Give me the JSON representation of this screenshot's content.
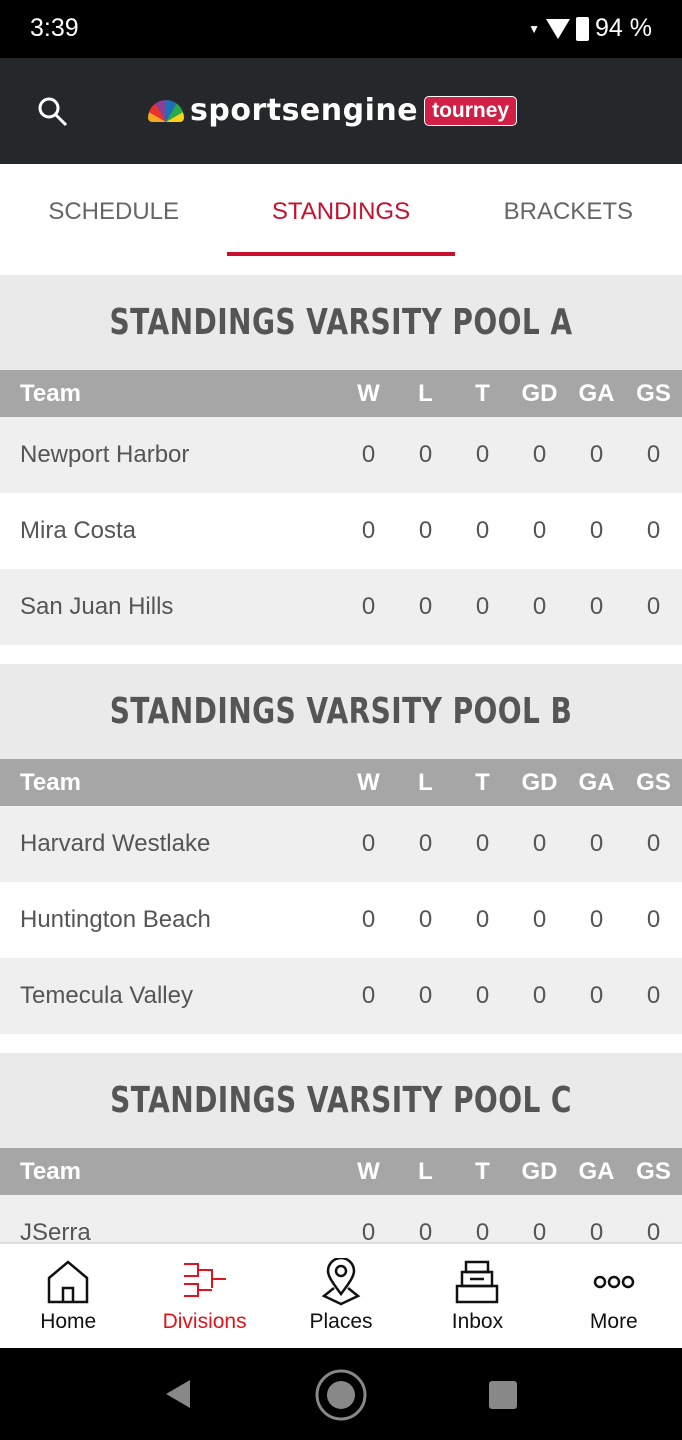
{
  "status": {
    "time": "3:39",
    "battery": "94 %"
  },
  "header": {
    "brand": "sportsengine",
    "badge": "tourney",
    "accent": "#c8102e"
  },
  "tabs": [
    {
      "label": "SCHEDULE"
    },
    {
      "label": "STANDINGS",
      "active": true
    },
    {
      "label": "BRACKETS"
    }
  ],
  "columns": [
    "Team",
    "W",
    "L",
    "T",
    "GD",
    "GA",
    "GS"
  ],
  "pools": [
    {
      "title": "STANDINGS VARSITY POOL A",
      "rows": [
        {
          "team": "Newport Harbor",
          "stats": [
            "0",
            "0",
            "0",
            "0",
            "0",
            "0"
          ]
        },
        {
          "team": "Mira Costa",
          "stats": [
            "0",
            "0",
            "0",
            "0",
            "0",
            "0"
          ]
        },
        {
          "team": "San Juan Hills",
          "stats": [
            "0",
            "0",
            "0",
            "0",
            "0",
            "0"
          ]
        }
      ]
    },
    {
      "title": "STANDINGS VARSITY POOL B",
      "rows": [
        {
          "team": "Harvard Westlake",
          "stats": [
            "0",
            "0",
            "0",
            "0",
            "0",
            "0"
          ]
        },
        {
          "team": "Huntington Beach",
          "stats": [
            "0",
            "0",
            "0",
            "0",
            "0",
            "0"
          ]
        },
        {
          "team": "Temecula Valley",
          "stats": [
            "0",
            "0",
            "0",
            "0",
            "0",
            "0"
          ]
        }
      ]
    },
    {
      "title": "STANDINGS VARSITY POOL C",
      "rows": [
        {
          "team": "JSerra",
          "stats": [
            "0",
            "0",
            "0",
            "0",
            "0",
            "0"
          ]
        }
      ]
    }
  ],
  "bottom_nav": [
    {
      "label": "Home",
      "icon": "home-icon"
    },
    {
      "label": "Divisions",
      "icon": "bracket-icon",
      "active": true
    },
    {
      "label": "Places",
      "icon": "map-pin-icon"
    },
    {
      "label": "Inbox",
      "icon": "inbox-icon"
    },
    {
      "label": "More",
      "icon": "more-icon"
    }
  ]
}
